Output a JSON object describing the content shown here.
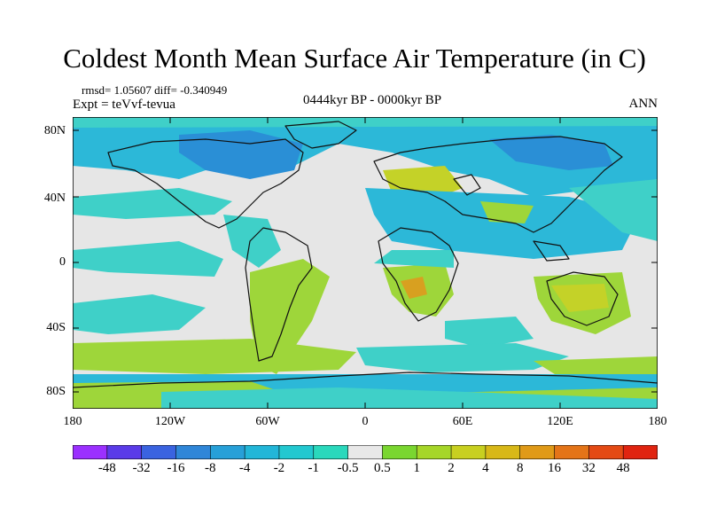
{
  "title": "Coldest Month Mean Surface Air Temperature (in C)",
  "stats": "rmsd= 1.05607 diff= -0.340949",
  "experiment": "Expt = teVvf-tevua",
  "period": "0444kyr BP - 0000kyr BP",
  "season": "ANN",
  "y_ticks": [
    "80N",
    "40N",
    "0",
    "40S",
    "80S"
  ],
  "x_ticks": [
    "180",
    "120W",
    "60W",
    "0",
    "60E",
    "120E",
    "180"
  ],
  "colorbar": {
    "labels": [
      "-48",
      "-32",
      "-16",
      "-8",
      "-4",
      "-2",
      "-1",
      "-0.5",
      "0.5",
      "1",
      "2",
      "4",
      "8",
      "16",
      "32",
      "48"
    ],
    "colors": [
      "#9b30ff",
      "#5a3be8",
      "#3a63e0",
      "#2f86d8",
      "#27a0d8",
      "#22b6d8",
      "#22c8d0",
      "#2ad8bc",
      "#e8e8e8",
      "#7ad630",
      "#a6d628",
      "#c8d020",
      "#d8b818",
      "#e09a18",
      "#e47418",
      "#e44a14",
      "#e02410"
    ]
  },
  "map_colors": {
    "neutral": "#e6e6e6",
    "cool1": "#3fd0c8",
    "cool2": "#2cb8d8",
    "cool3": "#2a8fd6",
    "warm1": "#9ed63a",
    "warm2": "#c4d228",
    "warm3": "#d8a020",
    "coast": "#111111"
  }
}
